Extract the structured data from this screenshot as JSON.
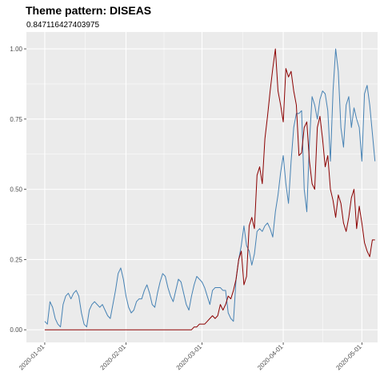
{
  "chart_data": {
    "type": "line",
    "title": "Theme pattern: DISEAS",
    "subtitle": "0.847116427403975",
    "xlabel": "",
    "ylabel": "",
    "x_axis": {
      "type": "date",
      "range": [
        "2019-12-25",
        "2020-05-07"
      ],
      "ticks": [
        "2020-01-01",
        "2020-02-01",
        "2020-03-01",
        "2020-04-01",
        "2020-05-01"
      ],
      "tick_labels": [
        "2020-01-01",
        "2020-02-01",
        "2020-03-01",
        "2020-04-01",
        "2020-05-01"
      ]
    },
    "y_axis": {
      "range": [
        -0.045,
        1.06
      ],
      "ticks": [
        0,
        0.25,
        0.5,
        0.75,
        1
      ],
      "tick_labels": [
        "0.00",
        "0.25",
        "0.50",
        "0.75",
        "1.00"
      ]
    },
    "grid": true,
    "legend": "none",
    "colors": {
      "panel": "#ebebeb",
      "grid": "#ffffff"
    },
    "series": [
      {
        "color": "#4682b4",
        "points": [
          [
            "2020-01-01",
            0.03
          ],
          [
            "2020-01-02",
            0.02
          ],
          [
            "2020-01-03",
            0.1
          ],
          [
            "2020-01-04",
            0.08
          ],
          [
            "2020-01-05",
            0.04
          ],
          [
            "2020-01-06",
            0.02
          ],
          [
            "2020-01-07",
            0.01
          ],
          [
            "2020-01-08",
            0.09
          ],
          [
            "2020-01-09",
            0.12
          ],
          [
            "2020-01-10",
            0.13
          ],
          [
            "2020-01-11",
            0.11
          ],
          [
            "2020-01-12",
            0.13
          ],
          [
            "2020-01-13",
            0.14
          ],
          [
            "2020-01-14",
            0.12
          ],
          [
            "2020-01-15",
            0.06
          ],
          [
            "2020-01-16",
            0.02
          ],
          [
            "2020-01-17",
            0.01
          ],
          [
            "2020-01-18",
            0.07
          ],
          [
            "2020-01-19",
            0.09
          ],
          [
            "2020-01-20",
            0.1
          ],
          [
            "2020-01-21",
            0.09
          ],
          [
            "2020-01-22",
            0.08
          ],
          [
            "2020-01-23",
            0.09
          ],
          [
            "2020-01-24",
            0.07
          ],
          [
            "2020-01-25",
            0.05
          ],
          [
            "2020-01-26",
            0.04
          ],
          [
            "2020-01-27",
            0.09
          ],
          [
            "2020-01-28",
            0.14
          ],
          [
            "2020-01-29",
            0.2
          ],
          [
            "2020-01-30",
            0.22
          ],
          [
            "2020-01-31",
            0.18
          ],
          [
            "2020-02-01",
            0.12
          ],
          [
            "2020-02-02",
            0.08
          ],
          [
            "2020-02-03",
            0.06
          ],
          [
            "2020-02-04",
            0.07
          ],
          [
            "2020-02-05",
            0.1
          ],
          [
            "2020-02-06",
            0.11
          ],
          [
            "2020-02-07",
            0.11
          ],
          [
            "2020-02-08",
            0.14
          ],
          [
            "2020-02-09",
            0.16
          ],
          [
            "2020-02-10",
            0.13
          ],
          [
            "2020-02-11",
            0.09
          ],
          [
            "2020-02-12",
            0.08
          ],
          [
            "2020-02-13",
            0.13
          ],
          [
            "2020-02-14",
            0.17
          ],
          [
            "2020-02-15",
            0.2
          ],
          [
            "2020-02-16",
            0.19
          ],
          [
            "2020-02-17",
            0.15
          ],
          [
            "2020-02-18",
            0.12
          ],
          [
            "2020-02-19",
            0.1
          ],
          [
            "2020-02-20",
            0.14
          ],
          [
            "2020-02-21",
            0.18
          ],
          [
            "2020-02-22",
            0.17
          ],
          [
            "2020-02-23",
            0.13
          ],
          [
            "2020-02-24",
            0.09
          ],
          [
            "2020-02-25",
            0.07
          ],
          [
            "2020-02-26",
            0.12
          ],
          [
            "2020-02-27",
            0.16
          ],
          [
            "2020-02-28",
            0.19
          ],
          [
            "2020-02-29",
            0.18
          ],
          [
            "2020-03-01",
            0.17
          ],
          [
            "2020-03-02",
            0.15
          ],
          [
            "2020-03-03",
            0.12
          ],
          [
            "2020-03-04",
            0.09
          ],
          [
            "2020-03-05",
            0.14
          ],
          [
            "2020-03-06",
            0.15
          ],
          [
            "2020-03-07",
            0.15
          ],
          [
            "2020-03-08",
            0.15
          ],
          [
            "2020-03-09",
            0.14
          ],
          [
            "2020-03-10",
            0.14
          ],
          [
            "2020-03-11",
            0.06
          ],
          [
            "2020-03-12",
            0.04
          ],
          [
            "2020-03-13",
            0.03
          ],
          [
            "2020-03-14",
            0.18
          ],
          [
            "2020-03-15",
            0.25
          ],
          [
            "2020-03-16",
            0.3
          ],
          [
            "2020-03-17",
            0.37
          ],
          [
            "2020-03-18",
            0.3
          ],
          [
            "2020-03-19",
            0.28
          ],
          [
            "2020-03-20",
            0.23
          ],
          [
            "2020-03-21",
            0.27
          ],
          [
            "2020-03-22",
            0.35
          ],
          [
            "2020-03-23",
            0.36
          ],
          [
            "2020-03-24",
            0.35
          ],
          [
            "2020-03-25",
            0.37
          ],
          [
            "2020-03-26",
            0.38
          ],
          [
            "2020-03-27",
            0.36
          ],
          [
            "2020-03-28",
            0.33
          ],
          [
            "2020-03-29",
            0.42
          ],
          [
            "2020-03-30",
            0.48
          ],
          [
            "2020-03-31",
            0.56
          ],
          [
            "2020-04-01",
            0.62
          ],
          [
            "2020-04-02",
            0.52
          ],
          [
            "2020-04-03",
            0.45
          ],
          [
            "2020-04-04",
            0.6
          ],
          [
            "2020-04-05",
            0.72
          ],
          [
            "2020-04-06",
            0.77
          ],
          [
            "2020-04-07",
            0.77
          ],
          [
            "2020-04-08",
            0.78
          ],
          [
            "2020-04-09",
            0.5
          ],
          [
            "2020-04-10",
            0.42
          ],
          [
            "2020-04-11",
            0.67
          ],
          [
            "2020-04-12",
            0.83
          ],
          [
            "2020-04-13",
            0.8
          ],
          [
            "2020-04-14",
            0.75
          ],
          [
            "2020-04-15",
            0.82
          ],
          [
            "2020-04-16",
            0.85
          ],
          [
            "2020-04-17",
            0.84
          ],
          [
            "2020-04-18",
            0.78
          ],
          [
            "2020-04-19",
            0.6
          ],
          [
            "2020-04-20",
            0.85
          ],
          [
            "2020-04-21",
            1.0
          ],
          [
            "2020-04-22",
            0.92
          ],
          [
            "2020-04-23",
            0.72
          ],
          [
            "2020-04-24",
            0.65
          ],
          [
            "2020-04-25",
            0.8
          ],
          [
            "2020-04-26",
            0.83
          ],
          [
            "2020-04-27",
            0.72
          ],
          [
            "2020-04-28",
            0.79
          ],
          [
            "2020-04-29",
            0.75
          ],
          [
            "2020-04-30",
            0.72
          ],
          [
            "2020-05-01",
            0.6
          ],
          [
            "2020-05-02",
            0.84
          ],
          [
            "2020-05-03",
            0.87
          ],
          [
            "2020-05-04",
            0.8
          ],
          [
            "2020-05-05",
            0.7
          ],
          [
            "2020-05-06",
            0.6
          ]
        ]
      },
      {
        "color": "#8b0000",
        "points": [
          [
            "2020-01-01",
            0.0
          ],
          [
            "2020-02-01",
            0.0
          ],
          [
            "2020-02-26",
            0.0
          ],
          [
            "2020-02-27",
            0.01
          ],
          [
            "2020-02-28",
            0.01
          ],
          [
            "2020-02-29",
            0.02
          ],
          [
            "2020-03-01",
            0.02
          ],
          [
            "2020-03-02",
            0.02
          ],
          [
            "2020-03-03",
            0.03
          ],
          [
            "2020-03-04",
            0.04
          ],
          [
            "2020-03-05",
            0.05
          ],
          [
            "2020-03-06",
            0.04
          ],
          [
            "2020-03-07",
            0.05
          ],
          [
            "2020-03-08",
            0.09
          ],
          [
            "2020-03-09",
            0.07
          ],
          [
            "2020-03-10",
            0.09
          ],
          [
            "2020-03-11",
            0.12
          ],
          [
            "2020-03-12",
            0.11
          ],
          [
            "2020-03-13",
            0.14
          ],
          [
            "2020-03-14",
            0.18
          ],
          [
            "2020-03-15",
            0.25
          ],
          [
            "2020-03-16",
            0.28
          ],
          [
            "2020-03-17",
            0.16
          ],
          [
            "2020-03-18",
            0.19
          ],
          [
            "2020-03-19",
            0.37
          ],
          [
            "2020-03-20",
            0.4
          ],
          [
            "2020-03-21",
            0.36
          ],
          [
            "2020-03-22",
            0.55
          ],
          [
            "2020-03-23",
            0.58
          ],
          [
            "2020-03-24",
            0.52
          ],
          [
            "2020-03-25",
            0.68
          ],
          [
            "2020-03-26",
            0.76
          ],
          [
            "2020-03-27",
            0.85
          ],
          [
            "2020-03-28",
            0.93
          ],
          [
            "2020-03-29",
            1.0
          ],
          [
            "2020-03-30",
            0.85
          ],
          [
            "2020-03-31",
            0.8
          ],
          [
            "2020-04-01",
            0.74
          ],
          [
            "2020-04-02",
            0.93
          ],
          [
            "2020-04-03",
            0.9
          ],
          [
            "2020-04-04",
            0.92
          ],
          [
            "2020-04-05",
            0.85
          ],
          [
            "2020-04-06",
            0.8
          ],
          [
            "2020-04-07",
            0.62
          ],
          [
            "2020-04-08",
            0.63
          ],
          [
            "2020-04-09",
            0.72
          ],
          [
            "2020-04-10",
            0.74
          ],
          [
            "2020-04-11",
            0.6
          ],
          [
            "2020-04-12",
            0.52
          ],
          [
            "2020-04-13",
            0.5
          ],
          [
            "2020-04-14",
            0.72
          ],
          [
            "2020-04-15",
            0.76
          ],
          [
            "2020-04-16",
            0.68
          ],
          [
            "2020-04-17",
            0.58
          ],
          [
            "2020-04-18",
            0.62
          ],
          [
            "2020-04-19",
            0.5
          ],
          [
            "2020-04-20",
            0.46
          ],
          [
            "2020-04-21",
            0.4
          ],
          [
            "2020-04-22",
            0.48
          ],
          [
            "2020-04-23",
            0.45
          ],
          [
            "2020-04-24",
            0.38
          ],
          [
            "2020-04-25",
            0.35
          ],
          [
            "2020-04-26",
            0.4
          ],
          [
            "2020-04-27",
            0.47
          ],
          [
            "2020-04-28",
            0.5
          ],
          [
            "2020-04-29",
            0.36
          ],
          [
            "2020-04-30",
            0.44
          ],
          [
            "2020-05-01",
            0.38
          ],
          [
            "2020-05-02",
            0.31
          ],
          [
            "2020-05-03",
            0.28
          ],
          [
            "2020-05-04",
            0.26
          ],
          [
            "2020-05-05",
            0.32
          ],
          [
            "2020-05-06",
            0.32
          ]
        ]
      }
    ]
  }
}
